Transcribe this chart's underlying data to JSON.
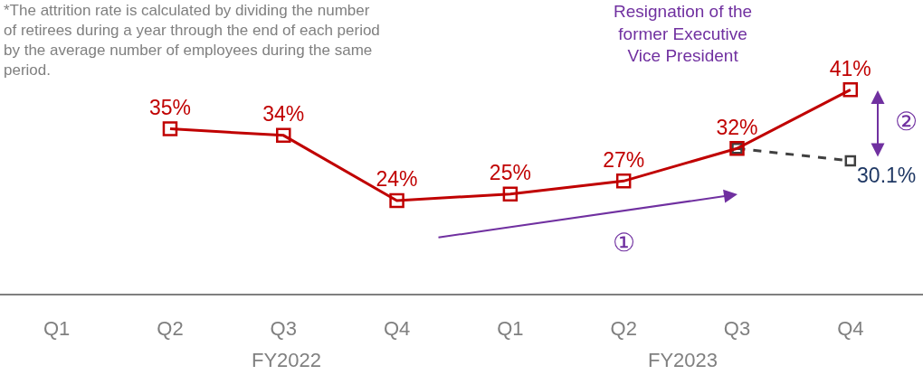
{
  "chart_data": {
    "type": "line",
    "categories": [
      "Q1",
      "Q2",
      "Q3",
      "Q4",
      "Q1",
      "Q2",
      "Q3",
      "Q4"
    ],
    "series": [
      {
        "color": "#c00000",
        "values": [
          null,
          35,
          34,
          24,
          25,
          27,
          32,
          41
        ],
        "value_labels": [
          null,
          "35%",
          "34%",
          "24%",
          "25%",
          "27%",
          "32%",
          "41%"
        ],
        "line_style": "solid"
      },
      {
        "color": "#404040",
        "values": [
          null,
          null,
          null,
          null,
          null,
          null,
          32,
          30.1
        ],
        "value_labels": [
          null,
          null,
          null,
          null,
          null,
          null,
          null,
          "30.1%"
        ],
        "line_style": "dashed"
      }
    ],
    "annotations": [
      "*The attrition rate is calculated by dividing the number of retirees during a year through the end of each period by the average number of employees during the same period.",
      "Resignation of the former Executive Vice President",
      "①",
      "②",
      "FY2022",
      "FY2023"
    ],
    "marker": "square",
    "grid": false
  }
}
